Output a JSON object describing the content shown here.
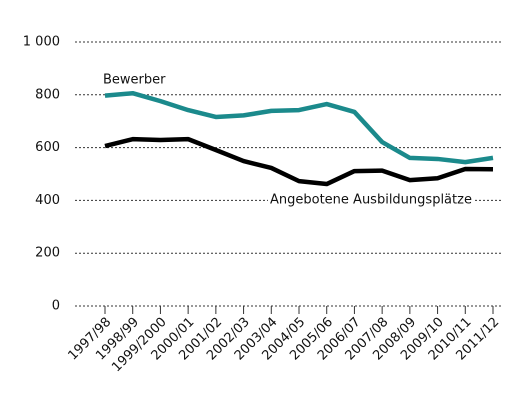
{
  "chart_data": {
    "type": "line",
    "categories": [
      "1997/98",
      "1998/99",
      "1999/2000",
      "2000/01",
      "2001/02",
      "2002/03",
      "2003/04",
      "2004/05",
      "2005/06",
      "2006/07",
      "2007/08",
      "2008/09",
      "2009/10",
      "2010/11",
      "2011/12"
    ],
    "series": [
      {
        "name": "Bewerber",
        "color": "#1b8a8c",
        "values": [
          797,
          806,
          776,
          742,
          716,
          722,
          739,
          742,
          765,
          735,
          621,
          561,
          557,
          545,
          561
        ]
      },
      {
        "name": "Angebotene Ausbildungsplätze",
        "color": "#000000",
        "values": [
          606,
          632,
          629,
          632,
          591,
          549,
          523,
          473,
          462,
          511,
          513,
          477,
          484,
          519,
          518
        ]
      }
    ],
    "ylim": [
      0,
      1000
    ],
    "yticks": [
      0,
      200,
      400,
      600,
      800,
      {
        "value": 1000,
        "label": "1 000"
      }
    ],
    "grid": true
  }
}
